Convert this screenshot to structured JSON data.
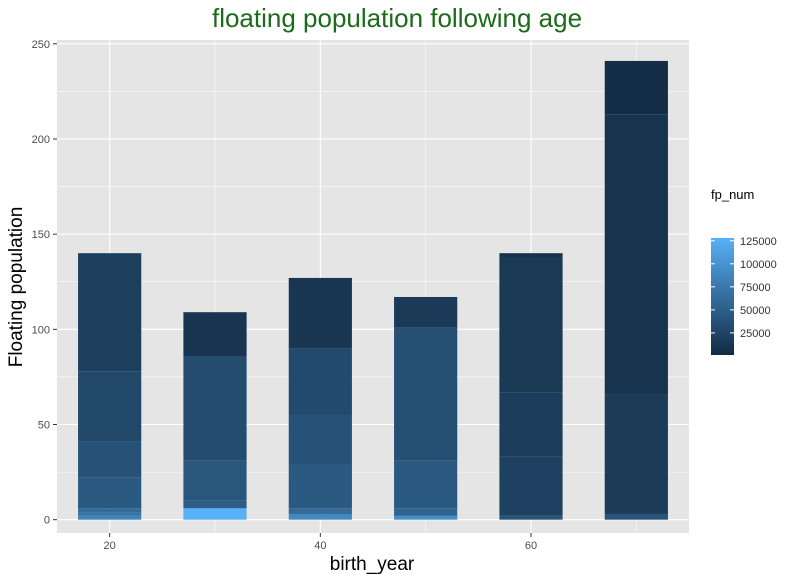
{
  "chart_data": {
    "type": "bar",
    "title": "floating population following age",
    "xlabel": "birth_year",
    "ylabel": "Floating population",
    "xlim": [
      15,
      75
    ],
    "ylim": [
      -7,
      252
    ],
    "xticks": [
      20,
      40,
      60
    ],
    "yticks": [
      0,
      50,
      100,
      150,
      200,
      250
    ],
    "grid": true,
    "bar_width": 6,
    "legend": {
      "title": "fp_num",
      "position": "right",
      "type": "colorbar",
      "min": 1000,
      "max": 128000,
      "ticks": [
        25000,
        50000,
        75000,
        100000,
        125000
      ],
      "color_low": "#132b43",
      "color_high": "#56b1f7"
    },
    "categories": [
      20,
      30,
      40,
      50,
      60,
      70
    ],
    "totals": [
      140,
      109,
      127,
      117,
      140,
      241
    ],
    "stacks": [
      [
        {
          "y0": 0,
          "y1": 2,
          "fp_num": 85000
        },
        {
          "y0": 2,
          "y1": 4,
          "fp_num": 70000
        },
        {
          "y0": 4,
          "y1": 6,
          "fp_num": 62000
        },
        {
          "y0": 6,
          "y1": 22,
          "fp_num": 45000
        },
        {
          "y0": 22,
          "y1": 41,
          "fp_num": 38000
        },
        {
          "y0": 41,
          "y1": 78,
          "fp_num": 28000
        },
        {
          "y0": 78,
          "y1": 140,
          "fp_num": 20000
        }
      ],
      [
        {
          "y0": 0,
          "y1": 6,
          "fp_num": 128000
        },
        {
          "y0": 6,
          "y1": 10,
          "fp_num": 48000
        },
        {
          "y0": 10,
          "y1": 31,
          "fp_num": 42000
        },
        {
          "y0": 31,
          "y1": 86,
          "fp_num": 32000
        },
        {
          "y0": 86,
          "y1": 109,
          "fp_num": 10000
        }
      ],
      [
        {
          "y0": 0,
          "y1": 3,
          "fp_num": 90000
        },
        {
          "y0": 3,
          "y1": 6,
          "fp_num": 60000
        },
        {
          "y0": 6,
          "y1": 29,
          "fp_num": 45000
        },
        {
          "y0": 29,
          "y1": 55,
          "fp_num": 38000
        },
        {
          "y0": 55,
          "y1": 90,
          "fp_num": 30000
        },
        {
          "y0": 90,
          "y1": 127,
          "fp_num": 12000
        }
      ],
      [
        {
          "y0": 0,
          "y1": 2,
          "fp_num": 95000
        },
        {
          "y0": 2,
          "y1": 6,
          "fp_num": 55000
        },
        {
          "y0": 6,
          "y1": 31,
          "fp_num": 45000
        },
        {
          "y0": 31,
          "y1": 101,
          "fp_num": 35000
        },
        {
          "y0": 101,
          "y1": 117,
          "fp_num": 15000
        }
      ],
      [
        {
          "y0": 0,
          "y1": 2,
          "fp_num": 40000
        },
        {
          "y0": 2,
          "y1": 33,
          "fp_num": 22000
        },
        {
          "y0": 33,
          "y1": 67,
          "fp_num": 18000
        },
        {
          "y0": 67,
          "y1": 138,
          "fp_num": 14000
        },
        {
          "y0": 138,
          "y1": 140,
          "fp_num": 8000
        }
      ],
      [
        {
          "y0": 0,
          "y1": 3,
          "fp_num": 40000
        },
        {
          "y0": 3,
          "y1": 66,
          "fp_num": 16000
        },
        {
          "y0": 66,
          "y1": 213,
          "fp_num": 9000
        },
        {
          "y0": 213,
          "y1": 241,
          "fp_num": 4000
        }
      ]
    ]
  }
}
